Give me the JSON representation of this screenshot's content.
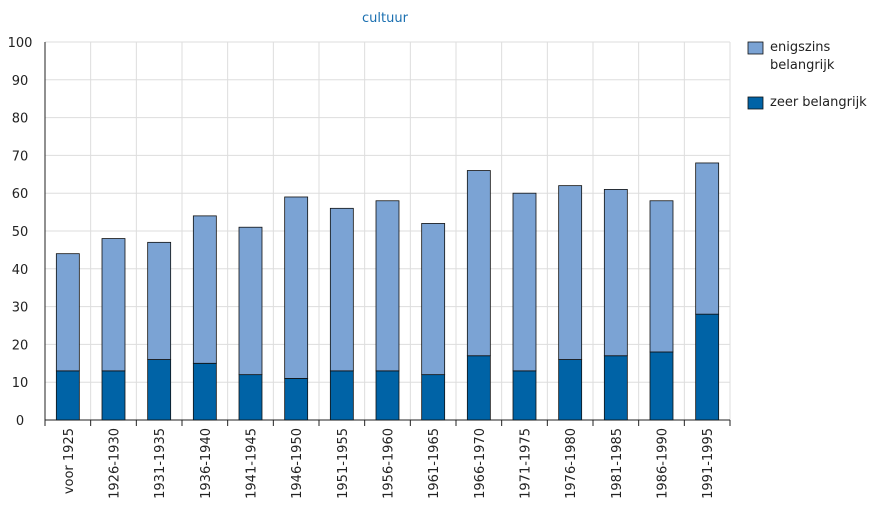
{
  "chart_data": {
    "type": "stacked_bar",
    "title": "cultuur",
    "categories": [
      "voor 1925",
      "1926-1930",
      "1931-1935",
      "1936-1940",
      "1941-1945",
      "1946-1950",
      "1951-1955",
      "1956-1960",
      "1961-1965",
      "1966-1970",
      "1971-1975",
      "1976-1980",
      "1981-1985",
      "1986-1990",
      "1991-1995"
    ],
    "series": [
      {
        "name": "enigszins belangrijk",
        "color": "#7ba3d4",
        "values": [
          31,
          35,
          31,
          39,
          39,
          48,
          43,
          45,
          40,
          49,
          47,
          46,
          44,
          40,
          40
        ]
      },
      {
        "name": "zeer belangrijk",
        "color": "#0063a6",
        "values": [
          13,
          13,
          16,
          15,
          12,
          11,
          13,
          13,
          12,
          17,
          13,
          16,
          17,
          18,
          28
        ]
      }
    ],
    "ylim": [
      0,
      100
    ],
    "yticks": [
      0,
      10,
      20,
      30,
      40,
      50,
      60,
      70,
      80,
      90,
      100
    ],
    "grid": true,
    "legend": "right"
  }
}
